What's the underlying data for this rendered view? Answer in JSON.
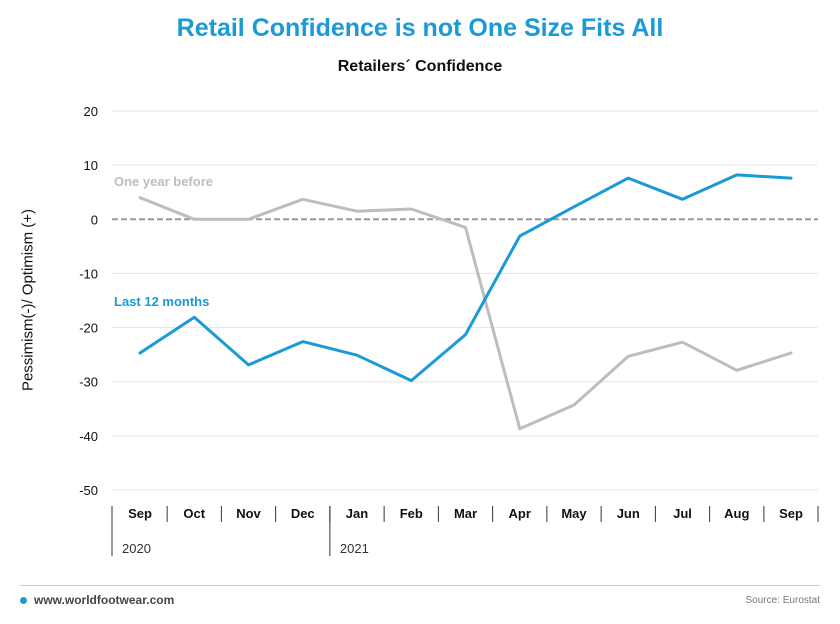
{
  "colors": {
    "accent": "#1a9ad6",
    "last12": "#1a9ad6",
    "oneYear": "#bdbdbd",
    "zero": "#999999"
  },
  "footer": {
    "site": "www.worldfootwear.com",
    "source": "Source: Eurostat"
  },
  "chart_data": {
    "type": "line",
    "title": "Retail Confidence is not One Size Fits All",
    "subtitle": "Retailers´ Confidence",
    "ylabel": "Pessimism(-)/ Optimism (+)",
    "xlabel": "",
    "ylim": [
      -50,
      20
    ],
    "yticks": [
      20,
      10,
      0,
      -10,
      -20,
      -30,
      -40,
      -50
    ],
    "categories": [
      "Sep",
      "Oct",
      "Nov",
      "Dec",
      "Jan",
      "Feb",
      "Mar",
      "Apr",
      "May",
      "Jun",
      "Jul",
      "Aug",
      "Sep"
    ],
    "year_labels": [
      {
        "label": "2020",
        "start_index": 0
      },
      {
        "label": "2021",
        "start_index": 4
      }
    ],
    "grid": true,
    "zero_line": "dashed",
    "series": [
      {
        "name": "One year before",
        "color": "#bdbdbd",
        "values": [
          4.0,
          0.0,
          0.0,
          3.7,
          1.5,
          1.9,
          -1.5,
          -38.7,
          -34.3,
          -25.3,
          -22.7,
          -27.9,
          -24.7
        ]
      },
      {
        "name": "Last 12 months",
        "color": "#1a9ad6",
        "values": [
          -24.7,
          -18.1,
          -26.9,
          -22.6,
          -25.1,
          -29.8,
          -21.3,
          -3.1,
          2.3,
          7.6,
          3.7,
          8.2,
          7.6
        ]
      }
    ]
  }
}
